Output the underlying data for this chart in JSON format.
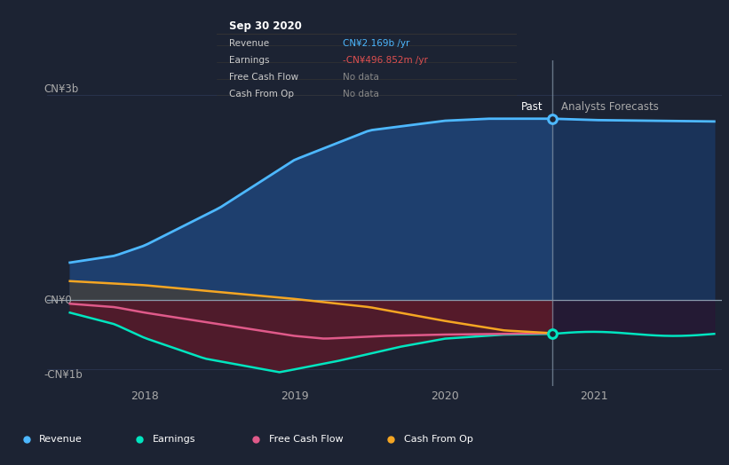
{
  "bg_color": "#1c2333",
  "plot_bg_color": "#1c2333",
  "ylabel_top": "CN¥3b",
  "ylabel_zero": "CN¥0",
  "ylabel_bottom": "-CN¥1b",
  "x_ticks": [
    "2018",
    "2019",
    "2020",
    "2021"
  ],
  "x_tick_positions": [
    2018,
    2019,
    2020,
    2021
  ],
  "divider_x": 2020.72,
  "past_label": "Past",
  "forecast_label": "Analysts Forecasts",
  "tooltip": {
    "date": "Sep 30 2020",
    "rows": [
      {
        "label": "Revenue",
        "value": "CN¥2.169b",
        "suffix": " /yr",
        "color": "#4db8ff"
      },
      {
        "label": "Earnings",
        "value": "-CN¥496.852m",
        "suffix": " /yr",
        "color": "#e05050"
      },
      {
        "label": "Free Cash Flow",
        "value": "No data",
        "suffix": "",
        "color": "#888888"
      },
      {
        "label": "Cash From Op",
        "value": "No data",
        "suffix": "",
        "color": "#888888"
      }
    ]
  },
  "legend": [
    {
      "label": "Revenue",
      "color": "#4db8ff"
    },
    {
      "label": "Earnings",
      "color": "#00e5c0"
    },
    {
      "label": "Free Cash Flow",
      "color": "#e05a8a"
    },
    {
      "label": "Cash From Op",
      "color": "#f5a623"
    }
  ],
  "revenue_color": "#4db8ff",
  "earnings_color": "#00e5c0",
  "fcf_color": "#e05a8a",
  "cashop_color": "#f5a623",
  "revenue_fill_past": "#1e3f6e",
  "revenue_fill_fore": "#1a3660",
  "earnings_fill_neg": "#5c1a2a",
  "cashop_fill_pos": "#404040",
  "cashop_fill_neg": "#5c1a2a",
  "grid_color": "#2a3550",
  "zero_line_color": "#8899aa",
  "divider_color": "#8899aa",
  "ylim": [
    -1.25,
    3.5
  ],
  "xlim": [
    2017.35,
    2021.85
  ]
}
